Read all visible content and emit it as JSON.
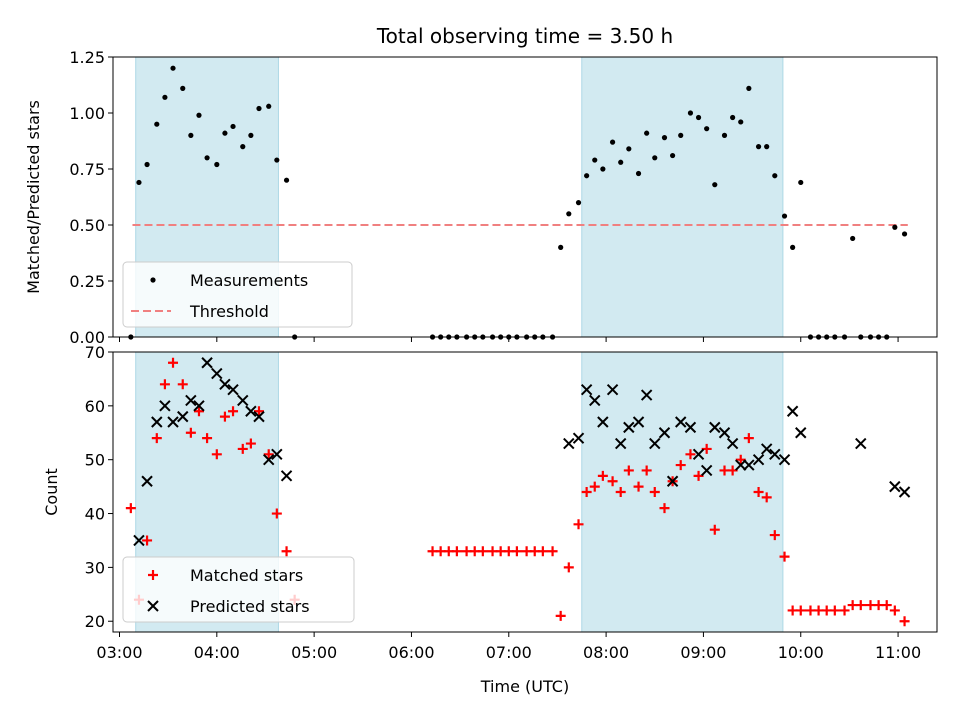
{
  "title": "Total observing time = 3.50 h",
  "colors": {
    "measurements": "#000000",
    "threshold": "#f08080",
    "matched": "#ff0000",
    "predicted": "#000000",
    "shade": "#add8e6"
  },
  "chart_data": [
    {
      "type": "scatter",
      "ylabel": "Matched/Predicted stars",
      "xlim": [
        "02:56",
        "11:24"
      ],
      "ylim": [
        0,
        1.25
      ],
      "yticks": [
        0.0,
        0.25,
        0.5,
        0.75,
        1.0,
        1.25
      ],
      "ytick_labels": [
        "0.00",
        "0.25",
        "0.50",
        "0.75",
        "1.00",
        "1.25"
      ],
      "shaded_spans": [
        [
          "03:10",
          "04:38"
        ],
        [
          "07:45",
          "09:49"
        ]
      ],
      "threshold": {
        "value": 0.5,
        "x": [
          "03:08",
          "11:06"
        ]
      },
      "legend": {
        "position": "lower-left",
        "entries": [
          "Measurements",
          "Threshold"
        ]
      },
      "series": [
        {
          "name": "Measurements",
          "x": [
            "03:07",
            "03:12",
            "03:17",
            "03:23",
            "03:28",
            "03:33",
            "03:39",
            "03:44",
            "03:49",
            "03:54",
            "04:00",
            "04:05",
            "04:10",
            "04:16",
            "04:21",
            "04:26",
            "04:32",
            "04:37",
            "04:43",
            "04:48",
            "06:13",
            "06:18",
            "06:23",
            "06:28",
            "06:34",
            "06:39",
            "06:44",
            "06:50",
            "06:55",
            "07:00",
            "07:05",
            "07:11",
            "07:16",
            "07:21",
            "07:27",
            "07:32",
            "07:37",
            "07:43",
            "07:48",
            "07:53",
            "07:58",
            "08:04",
            "08:09",
            "08:14",
            "08:20",
            "08:25",
            "08:30",
            "08:36",
            "08:41",
            "08:46",
            "08:52",
            "08:57",
            "09:02",
            "09:07",
            "09:13",
            "09:18",
            "09:23",
            "09:28",
            "09:34",
            "09:39",
            "09:44",
            "09:50",
            "09:55",
            "10:00",
            "10:06",
            "10:11",
            "10:16",
            "10:21",
            "10:27",
            "10:32",
            "10:37",
            "10:43",
            "10:48",
            "10:53",
            "10:58",
            "11:04"
          ],
          "y": [
            0.0,
            0.69,
            0.77,
            0.95,
            1.07,
            1.2,
            1.11,
            0.9,
            0.99,
            0.8,
            0.77,
            0.91,
            0.94,
            0.85,
            0.9,
            1.02,
            1.03,
            0.79,
            0.7,
            0.0,
            0.0,
            0.0,
            0.0,
            0.0,
            0.0,
            0.0,
            0.0,
            0.0,
            0.0,
            0.0,
            0.0,
            0.0,
            0.0,
            0.0,
            0.0,
            0.4,
            0.55,
            0.6,
            0.72,
            0.79,
            0.75,
            0.87,
            0.78,
            0.84,
            0.73,
            0.91,
            0.8,
            0.89,
            0.81,
            0.9,
            1.0,
            0.98,
            0.93,
            0.68,
            0.9,
            0.98,
            0.96,
            1.11,
            0.85,
            0.85,
            0.72,
            0.54,
            0.4,
            0.69,
            0.0,
            0.0,
            0.0,
            0.0,
            0.0,
            0.44,
            0.0,
            0.0,
            0.0,
            0.0,
            0.49,
            0.46
          ]
        }
      ]
    },
    {
      "type": "scatter",
      "ylabel": "Count",
      "xlabel": "Time (UTC)",
      "xlim": [
        "02:56",
        "11:24"
      ],
      "ylim": [
        18,
        70
      ],
      "yticks": [
        20,
        30,
        40,
        50,
        60,
        70
      ],
      "ytick_labels": [
        "20",
        "30",
        "40",
        "50",
        "60",
        "70"
      ],
      "xticks": [
        "03:00",
        "04:00",
        "05:00",
        "06:00",
        "07:00",
        "08:00",
        "09:00",
        "10:00",
        "11:00"
      ],
      "shaded_spans": [
        [
          "03:10",
          "04:38"
        ],
        [
          "07:45",
          "09:49"
        ]
      ],
      "legend": {
        "position": "lower-left",
        "entries": [
          "Matched stars",
          "Predicted stars"
        ]
      },
      "series": [
        {
          "name": "Matched stars",
          "x": [
            "03:07",
            "03:12",
            "03:17",
            "03:23",
            "03:28",
            "03:33",
            "03:39",
            "03:44",
            "03:49",
            "03:54",
            "04:00",
            "04:05",
            "04:10",
            "04:16",
            "04:21",
            "04:26",
            "04:32",
            "04:37",
            "04:43",
            "04:48",
            "06:13",
            "06:18",
            "06:23",
            "06:28",
            "06:34",
            "06:39",
            "06:44",
            "06:50",
            "06:55",
            "07:00",
            "07:05",
            "07:11",
            "07:16",
            "07:21",
            "07:27",
            "07:32",
            "07:37",
            "07:43",
            "07:48",
            "07:53",
            "07:58",
            "08:04",
            "08:09",
            "08:14",
            "08:20",
            "08:25",
            "08:30",
            "08:36",
            "08:41",
            "08:46",
            "08:52",
            "08:57",
            "09:02",
            "09:07",
            "09:13",
            "09:18",
            "09:23",
            "09:28",
            "09:34",
            "09:39",
            "09:44",
            "09:50",
            "09:55",
            "10:00",
            "10:06",
            "10:11",
            "10:16",
            "10:21",
            "10:27",
            "10:32",
            "10:37",
            "10:43",
            "10:48",
            "10:53",
            "10:58",
            "11:04"
          ],
          "y": [
            41,
            24,
            35,
            54,
            64,
            68,
            64,
            55,
            59,
            54,
            51,
            58,
            59,
            52,
            53,
            59,
            51,
            40,
            33,
            24,
            33,
            33,
            33,
            33,
            33,
            33,
            33,
            33,
            33,
            33,
            33,
            33,
            33,
            33,
            33,
            21,
            30,
            38,
            44,
            45,
            47,
            46,
            44,
            48,
            45,
            48,
            44,
            41,
            46,
            49,
            51,
            47,
            52,
            37,
            48,
            48,
            50,
            54,
            44,
            43,
            36,
            32,
            22,
            22,
            22,
            22,
            22,
            22,
            22,
            23,
            23,
            23,
            23,
            23,
            22,
            20
          ]
        },
        {
          "name": "Predicted stars",
          "x": [
            "03:12",
            "03:17",
            "03:23",
            "03:28",
            "03:33",
            "03:39",
            "03:44",
            "03:49",
            "03:54",
            "04:00",
            "04:05",
            "04:10",
            "04:16",
            "04:21",
            "04:26",
            "04:32",
            "04:37",
            "04:43",
            "07:37",
            "07:43",
            "07:48",
            "07:53",
            "07:58",
            "08:04",
            "08:09",
            "08:14",
            "08:20",
            "08:25",
            "08:30",
            "08:36",
            "08:41",
            "08:46",
            "08:52",
            "08:57",
            "09:02",
            "09:07",
            "09:13",
            "09:18",
            "09:23",
            "09:28",
            "09:34",
            "09:39",
            "09:44",
            "09:50",
            "09:55",
            "10:00",
            "10:37",
            "10:58",
            "11:04"
          ],
          "y": [
            35,
            46,
            57,
            60,
            57,
            58,
            61,
            60,
            68,
            66,
            64,
            63,
            61,
            59,
            58,
            50,
            51,
            47,
            53,
            54,
            63,
            61,
            57,
            63,
            53,
            56,
            57,
            62,
            53,
            55,
            46,
            57,
            56,
            51,
            48,
            56,
            55,
            53,
            49,
            49,
            50,
            52,
            51,
            50,
            59,
            55,
            53,
            45,
            44
          ]
        }
      ]
    }
  ]
}
